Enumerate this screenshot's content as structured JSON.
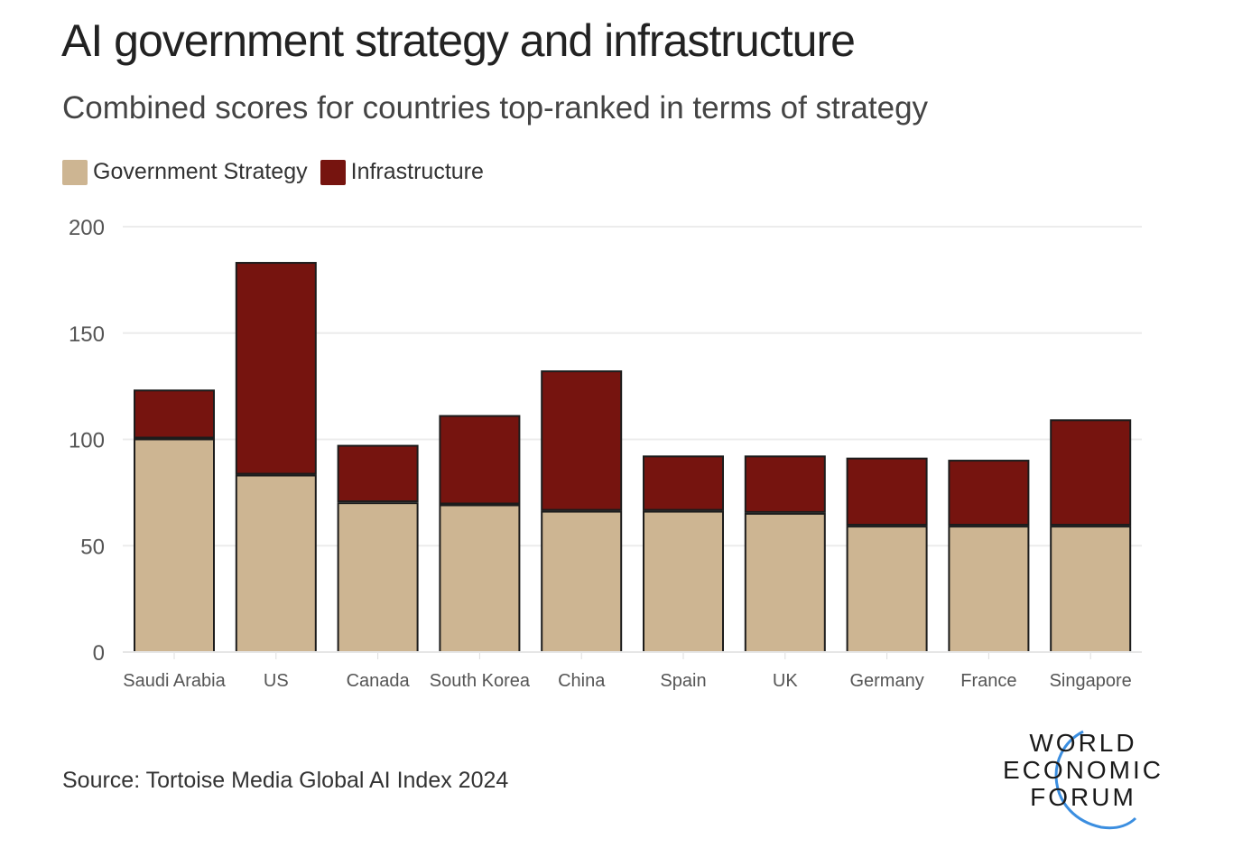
{
  "header": {
    "title": "AI government strategy and infrastructure",
    "subtitle": "Combined scores for countries top-ranked in terms of strategy"
  },
  "legend": [
    {
      "label": "Government Strategy",
      "color": "#cdb592"
    },
    {
      "label": "Infrastructure",
      "color": "#76140f"
    }
  ],
  "footer": {
    "source": "Source: Tortoise Media Global AI Index 2024",
    "logo_lines": [
      "WORLD",
      "ECONOMIC",
      "FORUM"
    ],
    "logo_arc_color": "#3b8ee0"
  },
  "chart_data": {
    "type": "bar",
    "stacked": true,
    "title": "AI government strategy and infrastructure",
    "subtitle": "Combined scores for countries top-ranked in terms of strategy",
    "xlabel": "",
    "ylabel": "",
    "ylim": [
      0,
      200
    ],
    "yticks": [
      0,
      50,
      100,
      150,
      200
    ],
    "grid": true,
    "legend_position": "top-left",
    "categories": [
      "Saudi Arabia",
      "US",
      "Canada",
      "South Korea",
      "China",
      "Spain",
      "UK",
      "Germany",
      "France",
      "Singapore"
    ],
    "series": [
      {
        "name": "Government Strategy",
        "color": "#cdb592",
        "values": [
          100,
          83,
          70,
          69,
          66,
          66,
          65,
          59,
          59,
          59
        ]
      },
      {
        "name": "Infrastructure",
        "color": "#76140f",
        "values": [
          23,
          100,
          27,
          42,
          66,
          26,
          27,
          32,
          31,
          50
        ]
      }
    ]
  }
}
